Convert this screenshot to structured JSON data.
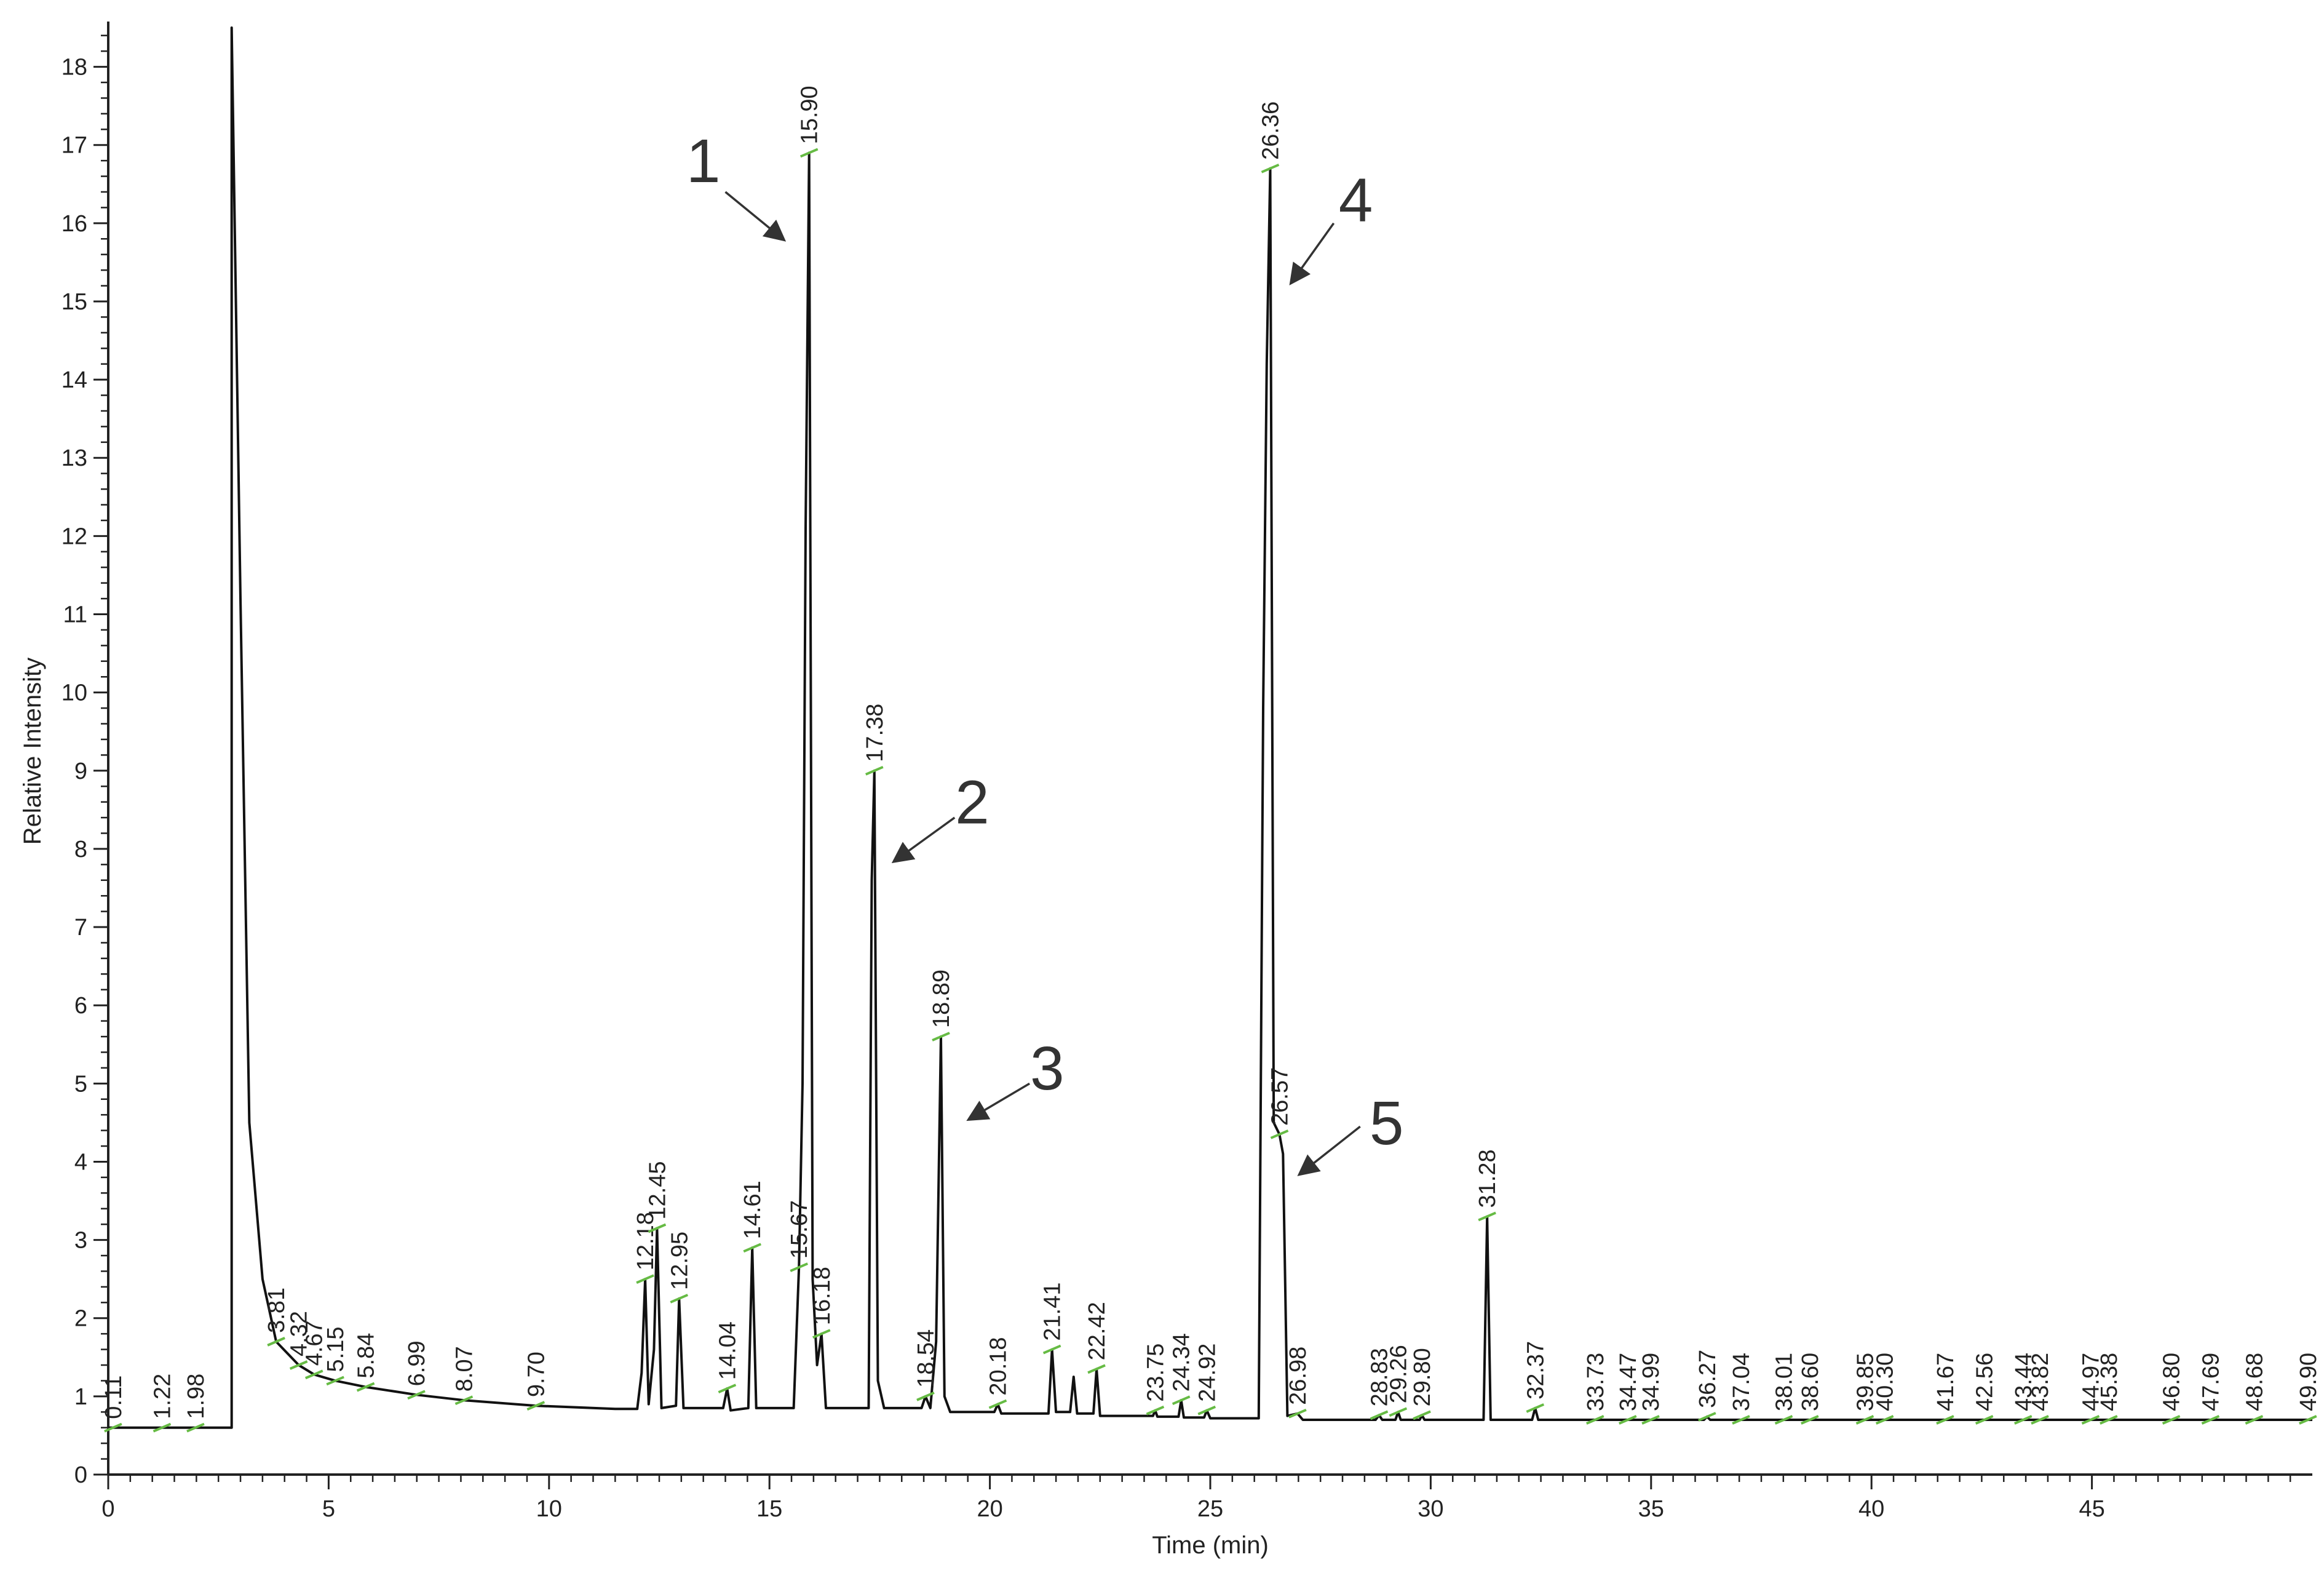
{
  "chart_data": {
    "type": "line",
    "title": "",
    "xlabel": "Time (min)",
    "ylabel": "Relative Intensity",
    "xlim": [
      0,
      50
    ],
    "ylim": [
      0,
      18.5
    ],
    "x_ticks": [
      0,
      5,
      10,
      15,
      20,
      25,
      30,
      35,
      40,
      45
    ],
    "y_ticks": [
      0,
      1,
      2,
      3,
      4,
      5,
      6,
      7,
      8,
      9,
      10,
      11,
      12,
      13,
      14,
      15,
      16,
      17,
      18
    ],
    "grid": false,
    "legend": "none",
    "colors": {
      "trace": "#111111",
      "baseline_marker": "#66bb44",
      "annotation": "#333333"
    },
    "series": [
      {
        "points": [
          [
            0,
            0.6
          ],
          [
            2.8,
            0.6
          ],
          [
            2.8,
            18.5
          ],
          [
            3.0,
            11.2
          ],
          [
            3.2,
            4.5
          ],
          [
            3.5,
            2.5
          ],
          [
            3.81,
            1.7
          ],
          [
            4.32,
            1.4
          ],
          [
            4.67,
            1.28
          ],
          [
            5.15,
            1.2
          ],
          [
            5.84,
            1.12
          ],
          [
            6.99,
            1.02
          ],
          [
            8.07,
            0.95
          ],
          [
            9.7,
            0.88
          ],
          [
            11.5,
            0.84
          ],
          [
            12.0,
            0.84
          ],
          [
            12.1,
            1.3
          ],
          [
            12.18,
            2.5
          ],
          [
            12.26,
            0.9
          ],
          [
            12.38,
            1.6
          ],
          [
            12.45,
            3.15
          ],
          [
            12.55,
            0.85
          ],
          [
            12.88,
            0.88
          ],
          [
            12.95,
            2.25
          ],
          [
            13.05,
            0.85
          ],
          [
            13.95,
            0.85
          ],
          [
            14.04,
            1.1
          ],
          [
            14.12,
            0.82
          ],
          [
            14.52,
            0.85
          ],
          [
            14.61,
            2.9
          ],
          [
            14.7,
            0.85
          ],
          [
            15.55,
            0.85
          ],
          [
            15.67,
            2.65
          ],
          [
            15.75,
            5.0
          ],
          [
            15.82,
            12.1
          ],
          [
            15.9,
            16.9
          ],
          [
            15.98,
            2.5
          ],
          [
            16.08,
            1.4
          ],
          [
            16.18,
            1.8
          ],
          [
            16.28,
            0.85
          ],
          [
            17.25,
            0.85
          ],
          [
            17.32,
            7.6
          ],
          [
            17.38,
            9.0
          ],
          [
            17.46,
            1.2
          ],
          [
            17.6,
            0.85
          ],
          [
            18.45,
            0.85
          ],
          [
            18.54,
            1.0
          ],
          [
            18.65,
            0.85
          ],
          [
            18.78,
            1.7
          ],
          [
            18.89,
            5.6
          ],
          [
            18.97,
            1.0
          ],
          [
            19.1,
            0.8
          ],
          [
            20.1,
            0.8
          ],
          [
            20.18,
            0.9
          ],
          [
            20.26,
            0.78
          ],
          [
            21.33,
            0.78
          ],
          [
            21.41,
            1.6
          ],
          [
            21.5,
            0.8
          ],
          [
            21.82,
            0.8
          ],
          [
            21.9,
            1.25
          ],
          [
            21.98,
            0.78
          ],
          [
            22.35,
            0.78
          ],
          [
            22.42,
            1.35
          ],
          [
            22.5,
            0.75
          ],
          [
            23.7,
            0.75
          ],
          [
            23.75,
            0.82
          ],
          [
            23.8,
            0.74
          ],
          [
            24.28,
            0.74
          ],
          [
            24.34,
            0.95
          ],
          [
            24.4,
            0.73
          ],
          [
            24.86,
            0.73
          ],
          [
            24.92,
            0.82
          ],
          [
            25.0,
            0.72
          ],
          [
            26.1,
            0.72
          ],
          [
            26.2,
            9.8
          ],
          [
            26.28,
            14.2
          ],
          [
            26.36,
            16.7
          ],
          [
            26.44,
            4.5
          ],
          [
            26.57,
            4.35
          ],
          [
            26.65,
            4.1
          ],
          [
            26.75,
            0.75
          ],
          [
            26.98,
            0.78
          ],
          [
            27.1,
            0.7
          ],
          [
            28.75,
            0.7
          ],
          [
            28.83,
            0.76
          ],
          [
            28.9,
            0.7
          ],
          [
            29.2,
            0.7
          ],
          [
            29.26,
            0.8
          ],
          [
            29.32,
            0.7
          ],
          [
            29.75,
            0.7
          ],
          [
            29.8,
            0.76
          ],
          [
            29.86,
            0.7
          ],
          [
            31.2,
            0.7
          ],
          [
            31.28,
            3.3
          ],
          [
            31.36,
            0.7
          ],
          [
            32.3,
            0.7
          ],
          [
            32.37,
            0.85
          ],
          [
            32.44,
            0.7
          ],
          [
            36.2,
            0.7
          ],
          [
            36.27,
            0.74
          ],
          [
            36.34,
            0.7
          ],
          [
            50,
            0.7
          ]
        ]
      }
    ],
    "peak_labels": [
      {
        "x": 0.11,
        "y": 0.6,
        "label": "0.11"
      },
      {
        "x": 1.22,
        "y": 0.6,
        "label": "1.22"
      },
      {
        "x": 1.98,
        "y": 0.6,
        "label": "1.98"
      },
      {
        "x": 3.81,
        "y": 1.7,
        "label": "3.81"
      },
      {
        "x": 4.32,
        "y": 1.4,
        "label": "4.32"
      },
      {
        "x": 4.67,
        "y": 1.28,
        "label": "4.67"
      },
      {
        "x": 5.15,
        "y": 1.2,
        "label": "5.15"
      },
      {
        "x": 5.84,
        "y": 1.12,
        "label": "5.84"
      },
      {
        "x": 6.99,
        "y": 1.02,
        "label": "6.99"
      },
      {
        "x": 8.07,
        "y": 0.95,
        "label": "8.07"
      },
      {
        "x": 9.7,
        "y": 0.88,
        "label": "9.70"
      },
      {
        "x": 12.18,
        "y": 2.5,
        "label": "12.18"
      },
      {
        "x": 12.45,
        "y": 3.15,
        "label": "12.45"
      },
      {
        "x": 12.95,
        "y": 2.25,
        "label": "12.95"
      },
      {
        "x": 14.04,
        "y": 1.1,
        "label": "14.04"
      },
      {
        "x": 14.61,
        "y": 2.9,
        "label": "14.61"
      },
      {
        "x": 15.67,
        "y": 2.65,
        "label": "15.67"
      },
      {
        "x": 15.9,
        "y": 16.9,
        "label": "15.90"
      },
      {
        "x": 16.18,
        "y": 1.8,
        "label": "16.18"
      },
      {
        "x": 17.38,
        "y": 9.0,
        "label": "17.38"
      },
      {
        "x": 18.54,
        "y": 1.0,
        "label": "18.54"
      },
      {
        "x": 18.89,
        "y": 5.6,
        "label": "18.89"
      },
      {
        "x": 20.18,
        "y": 0.9,
        "label": "20.18"
      },
      {
        "x": 21.41,
        "y": 1.6,
        "label": "21.41"
      },
      {
        "x": 22.42,
        "y": 1.35,
        "label": "22.42"
      },
      {
        "x": 23.75,
        "y": 0.82,
        "label": "23.75"
      },
      {
        "x": 24.34,
        "y": 0.95,
        "label": "24.34"
      },
      {
        "x": 24.92,
        "y": 0.82,
        "label": "24.92"
      },
      {
        "x": 26.36,
        "y": 16.7,
        "label": "26.36"
      },
      {
        "x": 26.57,
        "y": 4.35,
        "label": "26.57"
      },
      {
        "x": 26.98,
        "y": 0.78,
        "label": "26.98"
      },
      {
        "x": 28.83,
        "y": 0.76,
        "label": "28.83"
      },
      {
        "x": 29.26,
        "y": 0.8,
        "label": "29.26"
      },
      {
        "x": 29.8,
        "y": 0.76,
        "label": "29.80"
      },
      {
        "x": 31.28,
        "y": 3.3,
        "label": "31.28"
      },
      {
        "x": 32.37,
        "y": 0.85,
        "label": "32.37"
      },
      {
        "x": 33.73,
        "y": 0.7,
        "label": "33.73"
      },
      {
        "x": 34.47,
        "y": 0.7,
        "label": "34.47"
      },
      {
        "x": 34.99,
        "y": 0.7,
        "label": "34.99"
      },
      {
        "x": 36.27,
        "y": 0.74,
        "label": "36.27"
      },
      {
        "x": 37.04,
        "y": 0.7,
        "label": "37.04"
      },
      {
        "x": 38.01,
        "y": 0.7,
        "label": "38.01"
      },
      {
        "x": 38.6,
        "y": 0.7,
        "label": "38.60"
      },
      {
        "x": 39.85,
        "y": 0.7,
        "label": "39.85"
      },
      {
        "x": 40.3,
        "y": 0.7,
        "label": "40.30"
      },
      {
        "x": 41.67,
        "y": 0.7,
        "label": "41.67"
      },
      {
        "x": 42.56,
        "y": 0.7,
        "label": "42.56"
      },
      {
        "x": 43.44,
        "y": 0.7,
        "label": "43.44"
      },
      {
        "x": 43.82,
        "y": 0.7,
        "label": "43.82"
      },
      {
        "x": 44.97,
        "y": 0.7,
        "label": "44.97"
      },
      {
        "x": 45.38,
        "y": 0.7,
        "label": "45.38"
      },
      {
        "x": 46.8,
        "y": 0.7,
        "label": "46.80"
      },
      {
        "x": 47.69,
        "y": 0.7,
        "label": "47.69"
      },
      {
        "x": 48.68,
        "y": 0.7,
        "label": "48.68"
      },
      {
        "x": 49.9,
        "y": 0.7,
        "label": "49.90"
      }
    ],
    "annotations": [
      {
        "label": "1",
        "x": 13.5,
        "y": 16.8,
        "arrow_from": [
          14.0,
          16.4
        ],
        "arrow_to": [
          15.3,
          15.8
        ]
      },
      {
        "label": "2",
        "x": 19.6,
        "y": 8.6,
        "arrow_from": [
          19.2,
          8.4
        ],
        "arrow_to": [
          17.85,
          7.85
        ]
      },
      {
        "label": "3",
        "x": 21.3,
        "y": 5.2,
        "arrow_from": [
          20.9,
          5.0
        ],
        "arrow_to": [
          19.55,
          4.55
        ]
      },
      {
        "label": "4",
        "x": 28.3,
        "y": 16.3,
        "arrow_from": [
          27.8,
          16.0
        ],
        "arrow_to": [
          26.85,
          15.25
        ]
      },
      {
        "label": "5",
        "x": 29.0,
        "y": 4.5,
        "arrow_from": [
          28.4,
          4.45
        ],
        "arrow_to": [
          27.05,
          3.85
        ]
      }
    ]
  }
}
